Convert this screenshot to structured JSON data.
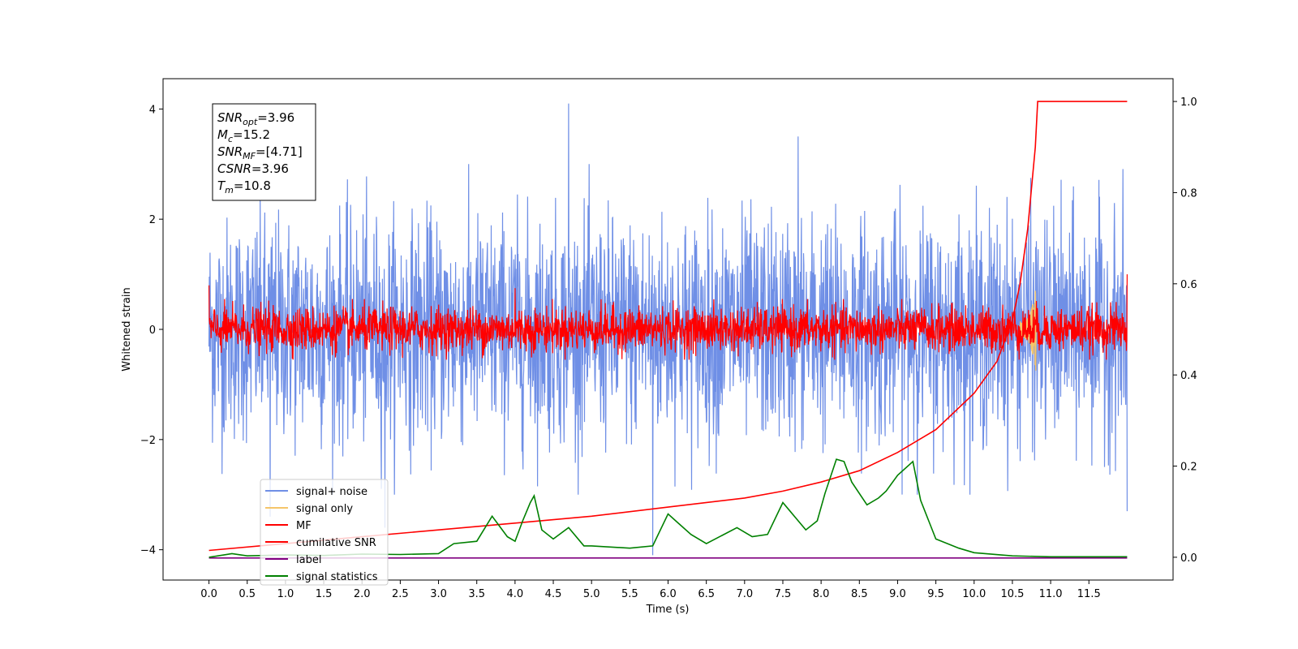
{
  "chart_data": {
    "type": "line",
    "xlabel": "Time (s)",
    "ylabel": "Whitened strain",
    "xlim": [
      -0.6,
      12.6
    ],
    "ylim_left": [
      -4.55,
      4.55
    ],
    "ylim_right": [
      -0.05,
      1.05
    ],
    "x_ticks": [
      "0.0",
      "0.5",
      "1.0",
      "1.5",
      "2.0",
      "2.5",
      "3.0",
      "3.5",
      "4.0",
      "4.5",
      "5.0",
      "5.5",
      "6.0",
      "6.5",
      "7.0",
      "7.5",
      "8.0",
      "8.5",
      "9.0",
      "9.5",
      "10.0",
      "10.5",
      "11.0",
      "11.5"
    ],
    "y_ticks_left": [
      "4",
      "2",
      "0",
      "−2",
      "−4"
    ],
    "y_ticks_right": [
      "1.0",
      "0.8",
      "0.6",
      "0.4",
      "0.2",
      "0.0"
    ],
    "colors": {
      "signal_noise": "#6f8fe6",
      "signal_only": "#f5c56a",
      "mf": "#ff0000",
      "cumulative_snr": "#ff0000",
      "label": "#800080",
      "signal_statistics": "#008000"
    },
    "info_box": [
      {
        "sym": "SNR",
        "sub": "opt",
        "val": "=3.96"
      },
      {
        "sym": "M",
        "sub": "c",
        "val": "=15.2"
      },
      {
        "sym": "SNR",
        "sub": "MF",
        "val": "=[4.71]"
      },
      {
        "sym": "CSNR",
        "sub": "",
        "val": "=3.96"
      },
      {
        "sym": "T",
        "sub": "m",
        "val": "=10.8"
      }
    ],
    "legend": {
      "position": "lower-left",
      "entries": [
        "signal+ noise",
        "signal only",
        "MF",
        "cumilative SNR",
        "label",
        "signal statistics"
      ]
    },
    "series": [
      {
        "name": "signal+ noise",
        "axis": "left",
        "x_range": [
          0.0,
          12.0
        ],
        "amplitude_std": 1.0,
        "peaks": [
          [
            4.7,
            4.1
          ],
          [
            7.7,
            3.5
          ],
          [
            5.8,
            -4.1
          ],
          [
            0.8,
            -3.4
          ],
          [
            2.3,
            -3.6
          ],
          [
            12.0,
            -3.3
          ]
        ]
      },
      {
        "name": "signal only",
        "axis": "left",
        "x_range": [
          10.6,
          10.8
        ],
        "peak": [
          10.8,
          0.7
        ]
      },
      {
        "name": "MF",
        "axis": "left",
        "x_range": [
          0.0,
          12.0
        ],
        "amplitude_std": 0.2,
        "peaks": [
          [
            0.0,
            0.8
          ],
          [
            12.0,
            1.0
          ],
          [
            4.0,
            0.75
          ]
        ]
      },
      {
        "name": "cumilative SNR",
        "axis": "right",
        "x": [
          0.0,
          1.0,
          2.0,
          3.0,
          4.0,
          5.0,
          6.0,
          7.0,
          7.5,
          8.0,
          8.5,
          9.0,
          9.5,
          10.0,
          10.3,
          10.5,
          10.6,
          10.7,
          10.8,
          10.83,
          12.0
        ],
        "y": [
          0.015,
          0.03,
          0.045,
          0.06,
          0.075,
          0.09,
          0.11,
          0.13,
          0.145,
          0.165,
          0.19,
          0.23,
          0.28,
          0.36,
          0.43,
          0.52,
          0.6,
          0.72,
          0.9,
          1.0,
          1.0
        ]
      },
      {
        "name": "label",
        "axis": "left",
        "x": [
          0.0,
          12.0
        ],
        "y": [
          -4.15,
          -4.15
        ]
      },
      {
        "name": "signal statistics",
        "axis": "right",
        "x": [
          0.0,
          0.3,
          0.5,
          1.0,
          1.5,
          2.0,
          2.5,
          3.0,
          3.2,
          3.5,
          3.7,
          3.9,
          4.0,
          4.1,
          4.2,
          4.25,
          4.35,
          4.5,
          4.7,
          4.9,
          5.0,
          5.5,
          5.8,
          6.0,
          6.1,
          6.3,
          6.5,
          6.9,
          7.1,
          7.3,
          7.5,
          7.6,
          7.8,
          7.95,
          8.05,
          8.2,
          8.3,
          8.4,
          8.6,
          8.75,
          8.85,
          9.0,
          9.2,
          9.3,
          9.5,
          9.8,
          10.0,
          10.5,
          11.0,
          12.0
        ],
        "y": [
          0.0,
          0.008,
          0.003,
          0.005,
          0.004,
          0.007,
          0.006,
          0.008,
          0.03,
          0.035,
          0.09,
          0.045,
          0.035,
          0.08,
          0.12,
          0.135,
          0.06,
          0.04,
          0.065,
          0.025,
          0.025,
          0.02,
          0.025,
          0.095,
          0.08,
          0.05,
          0.03,
          0.065,
          0.045,
          0.05,
          0.12,
          0.1,
          0.06,
          0.08,
          0.14,
          0.215,
          0.21,
          0.165,
          0.115,
          0.13,
          0.145,
          0.18,
          0.21,
          0.125,
          0.04,
          0.02,
          0.01,
          0.003,
          0.001,
          0.001
        ]
      }
    ]
  }
}
